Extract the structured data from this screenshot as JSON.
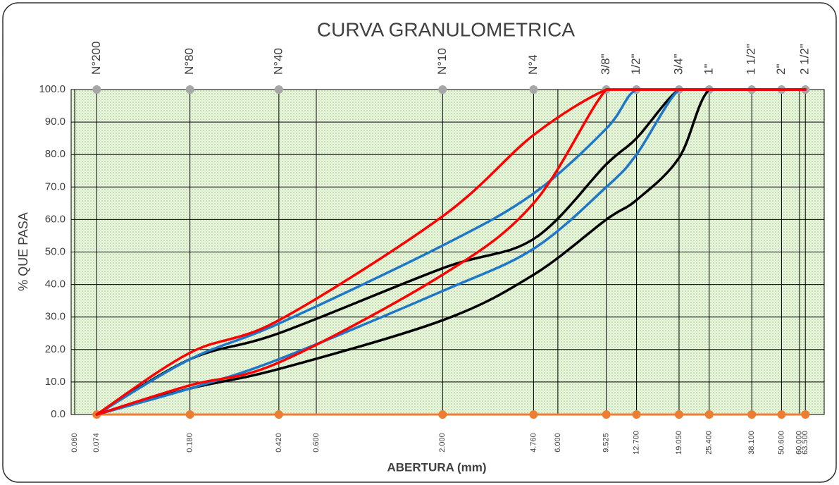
{
  "chart_data": {
    "type": "line",
    "title": "CURVA GRANULOMETRICA",
    "x_label": "ABERTURA (mm)",
    "y_label": "% QUE PASA",
    "log_x": true,
    "grid": true,
    "xlim": [
      0.058,
      76
    ],
    "ylim": [
      0,
      100
    ],
    "yticks": [
      {
        "value": 0,
        "label": "0.0"
      },
      {
        "value": 10,
        "label": "10.0"
      },
      {
        "value": 20,
        "label": "20.0"
      },
      {
        "value": 30,
        "label": "30.0"
      },
      {
        "value": 40,
        "label": "40.0"
      },
      {
        "value": 50,
        "label": "50.0"
      },
      {
        "value": 60,
        "label": "60.0"
      },
      {
        "value": 70,
        "label": "70.0"
      },
      {
        "value": 80,
        "label": "80.0"
      },
      {
        "value": 90,
        "label": "90.0"
      },
      {
        "value": 100,
        "label": "100.0"
      }
    ],
    "xticks": [
      {
        "value": 0.06,
        "label": "0.060"
      },
      {
        "value": 0.074,
        "label": "0.074"
      },
      {
        "value": 0.18,
        "label": "0.180"
      },
      {
        "value": 0.42,
        "label": "0.420"
      },
      {
        "value": 0.6,
        "label": "0.600"
      },
      {
        "value": 2,
        "label": "2.000"
      },
      {
        "value": 4.76,
        "label": "4.760"
      },
      {
        "value": 6,
        "label": "6.000"
      },
      {
        "value": 9.525,
        "label": "9.525"
      },
      {
        "value": 12.7,
        "label": "12.700"
      },
      {
        "value": 19.05,
        "label": "19.050"
      },
      {
        "value": 25.4,
        "label": "25.400"
      },
      {
        "value": 38.1,
        "label": "38.100"
      },
      {
        "value": 50.6,
        "label": "50.600"
      },
      {
        "value": 60,
        "label": "60.000"
      },
      {
        "value": 63.5,
        "label": "63.500"
      }
    ],
    "sieves": [
      {
        "label": "N°200",
        "size": 0.074
      },
      {
        "label": "N°80",
        "size": 0.18
      },
      {
        "label": "N°40",
        "size": 0.42
      },
      {
        "label": "N°10",
        "size": 2
      },
      {
        "label": "N°4",
        "size": 4.76
      },
      {
        "label": "3/8\"",
        "size": 9.525
      },
      {
        "label": "1/2\"",
        "size": 12.7
      },
      {
        "label": "3/4\"",
        "size": 19.05
      },
      {
        "label": "1\"",
        "size": 25.4
      },
      {
        "label": "1 1/2\"",
        "size": 38.1
      },
      {
        "label": "2\"",
        "size": 50.6
      },
      {
        "label": "2 1/2\"",
        "size": 63.5
      }
    ],
    "top_marker_color": "#a6a6a6",
    "bottom_marker_color": "#ed7d31",
    "x": [
      0.074,
      0.18,
      0.42,
      2,
      4.76,
      9.525,
      12.7,
      19.05,
      25.4,
      38.1,
      50.6,
      63.5
    ],
    "series": [
      {
        "color": "#000000",
        "values": [
          0,
          17,
          25,
          45,
          54,
          77,
          85,
          100,
          100,
          100,
          100,
          100
        ]
      },
      {
        "color": "#000000",
        "values": [
          0,
          8,
          14,
          29,
          43,
          60,
          66,
          79,
          100,
          100,
          100,
          100
        ]
      },
      {
        "color": "#1f77c8",
        "values": [
          0,
          17,
          28,
          52,
          68,
          88,
          100,
          100,
          100,
          100,
          100,
          100
        ]
      },
      {
        "color": "#1f77c8",
        "values": [
          0,
          8,
          17,
          38,
          51,
          70,
          80,
          100,
          100,
          100,
          100,
          100
        ]
      },
      {
        "color": "#ff0000",
        "values": [
          0,
          19,
          29,
          61,
          86,
          100,
          100,
          100,
          100,
          100,
          100,
          100
        ]
      },
      {
        "color": "#ff0000",
        "values": [
          0,
          9,
          16,
          43,
          65,
          100,
          100,
          100,
          100,
          100,
          100,
          100
        ]
      }
    ]
  }
}
